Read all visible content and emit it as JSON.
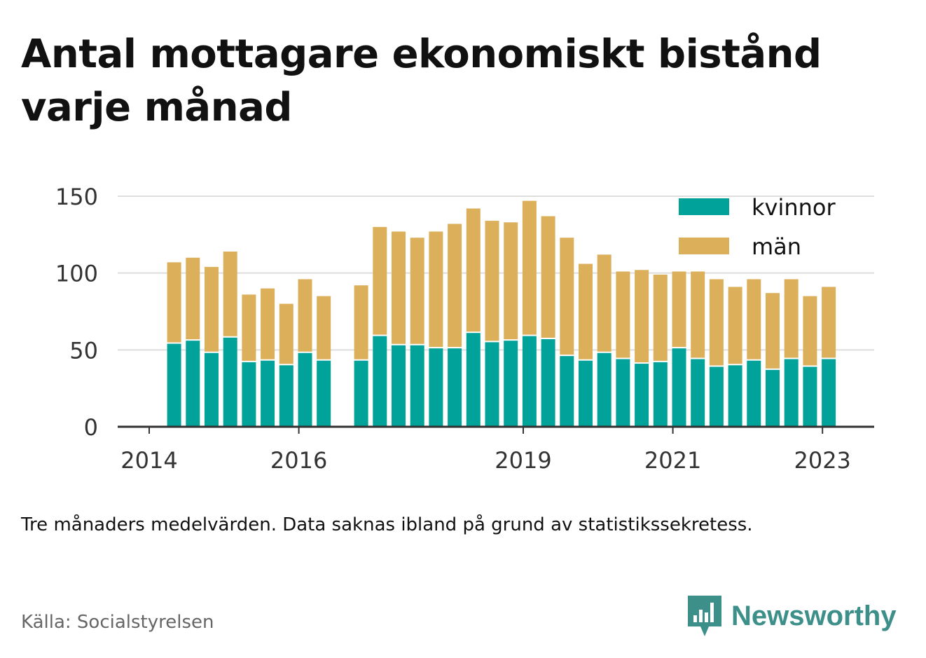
{
  "title": "Antal mottagare ekonomiskt bistånd varje månad",
  "note": "Tre månaders medelvärden. Data saknas ibland på grund av statistikssekretess.",
  "source": "Källa: Socialstyrelsen",
  "brand": "Newsworthy",
  "colors": {
    "kvinnor": "#00a29a",
    "man": "#dcaf5b",
    "brand": "#3d8f89",
    "grid": "#dddddd",
    "axis": "#333333"
  },
  "chart_data": {
    "type": "bar",
    "stacked": true,
    "x_ticks": [
      "2014",
      "2016",
      "2019",
      "2021",
      "2023"
    ],
    "y_ticks": [
      0,
      50,
      100,
      150
    ],
    "ylim": [
      0,
      150
    ],
    "legend": "top-right",
    "grid": true,
    "periods": [
      "2014-06",
      "2014-09",
      "2014-12",
      "2015-03",
      "2015-06",
      "2015-09",
      "2015-12",
      "2016-03",
      "2016-06",
      "2016-12",
      "2017-03",
      "2017-06",
      "2017-09",
      "2017-12",
      "2018-03",
      "2018-06",
      "2018-09",
      "2018-12",
      "2019-03",
      "2019-06",
      "2019-09",
      "2019-12",
      "2020-03",
      "2020-06",
      "2020-09",
      "2020-12",
      "2021-03",
      "2021-06",
      "2021-09",
      "2021-12",
      "2022-03",
      "2022-06",
      "2022-09",
      "2022-12",
      "2023-03"
    ],
    "series": [
      {
        "name": "kvinnor",
        "values": [
          54,
          56,
          48,
          58,
          42,
          43,
          40,
          48,
          43,
          43,
          59,
          53,
          53,
          51,
          51,
          61,
          55,
          56,
          59,
          57,
          46,
          43,
          48,
          44,
          41,
          42,
          51,
          44,
          39,
          40,
          43,
          37,
          44,
          39,
          44
        ]
      },
      {
        "name": "män",
        "values": [
          53,
          54,
          56,
          56,
          44,
          47,
          40,
          48,
          42,
          49,
          71,
          74,
          70,
          76,
          81,
          81,
          79,
          77,
          88,
          80,
          77,
          63,
          64,
          57,
          61,
          57,
          50,
          57,
          57,
          51,
          53,
          50,
          52,
          46,
          47
        ]
      }
    ]
  }
}
